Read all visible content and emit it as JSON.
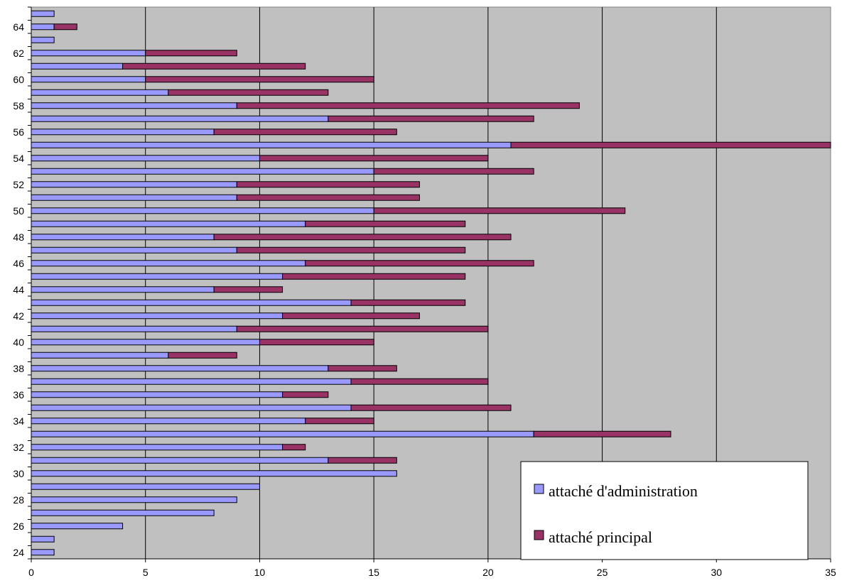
{
  "chart_data": {
    "type": "bar",
    "orientation": "horizontal",
    "stacked": true,
    "title": "",
    "xlabel": "",
    "ylabel": "",
    "xlim": [
      0,
      35
    ],
    "x_ticks": [
      "0",
      "5",
      "10",
      "15",
      "20",
      "25",
      "30",
      "35"
    ],
    "categories": [
      "24",
      "25",
      "26",
      "27",
      "28",
      "29",
      "30",
      "31",
      "32",
      "33",
      "34",
      "35",
      "36",
      "37",
      "38",
      "39",
      "40",
      "41",
      "42",
      "43",
      "44",
      "45",
      "46",
      "47",
      "48",
      "49",
      "50",
      "51",
      "52",
      "53",
      "54",
      "55",
      "56",
      "57",
      "58",
      "59",
      "60",
      "61",
      "62",
      "63",
      "64",
      "65"
    ],
    "y_tick_labels": [
      "24",
      "26",
      "28",
      "30",
      "32",
      "34",
      "36",
      "38",
      "40",
      "42",
      "44",
      "46",
      "48",
      "50",
      "52",
      "54",
      "56",
      "58",
      "60",
      "62",
      "64"
    ],
    "grid": "vertical",
    "background_color": "#c0c0c0",
    "legend_position": "bottom-right",
    "series": [
      {
        "name": "attaché d'administration",
        "color": "#9999ff",
        "values": [
          1,
          1,
          4,
          8,
          9,
          10,
          16,
          13,
          11,
          22,
          12,
          14,
          11,
          14,
          13,
          6,
          10,
          9,
          11,
          14,
          8,
          11,
          12,
          9,
          8,
          12,
          15,
          9,
          9,
          15,
          10,
          21,
          8,
          13,
          9,
          6,
          5,
          4,
          5,
          1,
          1,
          1
        ]
      },
      {
        "name": "attaché principal",
        "color": "#993366",
        "values": [
          0,
          0,
          0,
          0,
          0,
          0,
          0,
          3,
          1,
          6,
          3,
          7,
          2,
          6,
          3,
          3,
          5,
          11,
          6,
          5,
          3,
          8,
          10,
          10,
          13,
          7,
          11,
          8,
          8,
          7,
          10,
          14,
          8,
          9,
          15,
          7,
          10,
          8,
          4,
          0,
          1,
          0
        ]
      }
    ]
  }
}
